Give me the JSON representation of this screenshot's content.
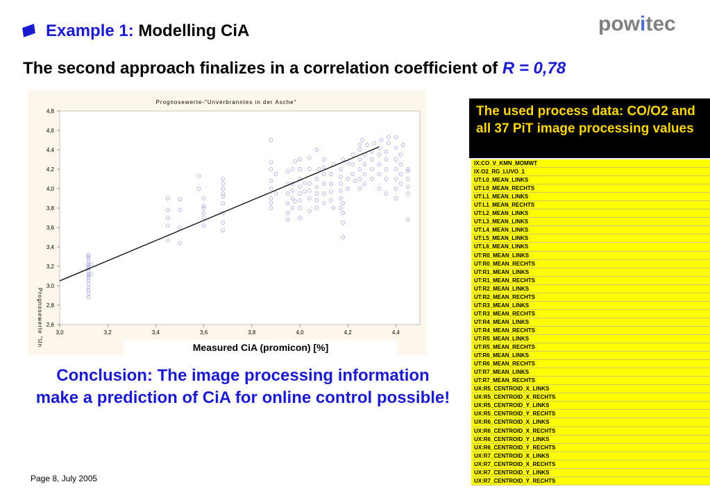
{
  "header": {
    "title_lead": "Example 1:",
    "title_rest": "Modelling CiA",
    "logo_prefix": "pow",
    "logo_accent": "i",
    "logo_suffix": "tec",
    "subtitle_text": "The second approach finalizes in a correlation coefficient of",
    "subtitle_r": "R = 0,78"
  },
  "chart_data": {
    "type": "scatter",
    "title": "Prognosewerte-\"Unverbranntes in der Asche\"",
    "xlabel": "Measured CiA (promicon) [%]",
    "ylabel": "Prognosewerte \"Un",
    "xlim": [
      3.0,
      4.5
    ],
    "ylim": [
      2.6,
      4.8
    ],
    "x_ticks": [
      "3,0",
      "3,2",
      "3,4",
      "3,6",
      "3,8",
      "4,0",
      "4,2",
      "4,4"
    ],
    "y_ticks": [
      "2,6",
      "2,8",
      "3,0",
      "3,2",
      "3,4",
      "3,6",
      "3,8",
      "4,0",
      "4,2",
      "4,4",
      "4,6",
      "4,8"
    ],
    "fit_line": {
      "x": [
        3.0,
        4.33
      ],
      "y": [
        3.05,
        4.43
      ]
    },
    "points": [
      [
        3.12,
        2.88
      ],
      [
        3.12,
        2.92
      ],
      [
        3.12,
        2.95
      ],
      [
        3.12,
        2.98
      ],
      [
        3.12,
        3.02
      ],
      [
        3.12,
        3.05
      ],
      [
        3.12,
        3.08
      ],
      [
        3.12,
        3.1
      ],
      [
        3.12,
        3.12
      ],
      [
        3.12,
        3.15
      ],
      [
        3.12,
        3.18
      ],
      [
        3.12,
        3.2
      ],
      [
        3.12,
        3.22
      ],
      [
        3.12,
        3.25
      ],
      [
        3.12,
        3.28
      ],
      [
        3.12,
        3.3
      ],
      [
        3.12,
        3.32
      ],
      [
        3.13,
        3.12
      ],
      [
        3.13,
        3.22
      ],
      [
        3.45,
        3.47
      ],
      [
        3.45,
        3.62
      ],
      [
        3.45,
        3.7
      ],
      [
        3.45,
        3.78
      ],
      [
        3.45,
        3.9
      ],
      [
        3.5,
        3.44
      ],
      [
        3.5,
        3.6
      ],
      [
        3.5,
        3.78
      ],
      [
        3.5,
        3.89
      ],
      [
        3.58,
        4.0
      ],
      [
        3.58,
        4.13
      ],
      [
        3.6,
        3.75
      ],
      [
        3.6,
        3.8
      ],
      [
        3.6,
        3.82
      ],
      [
        3.6,
        3.9
      ],
      [
        3.6,
        3.62
      ],
      [
        3.6,
        3.7
      ],
      [
        3.68,
        3.57
      ],
      [
        3.68,
        3.65
      ],
      [
        3.68,
        3.75
      ],
      [
        3.68,
        3.85
      ],
      [
        3.68,
        3.95
      ],
      [
        3.68,
        4.0
      ],
      [
        3.68,
        4.05
      ],
      [
        3.68,
        4.1
      ],
      [
        3.68,
        3.92
      ],
      [
        3.88,
        3.8
      ],
      [
        3.88,
        3.85
      ],
      [
        3.88,
        3.9
      ],
      [
        3.88,
        4.0
      ],
      [
        3.88,
        4.08
      ],
      [
        3.88,
        4.2
      ],
      [
        3.88,
        4.27
      ],
      [
        3.88,
        4.5
      ],
      [
        3.9,
        4.15
      ],
      [
        3.9,
        3.95
      ],
      [
        3.95,
        3.68
      ],
      [
        3.95,
        3.75
      ],
      [
        3.95,
        3.85
      ],
      [
        3.95,
        3.95
      ],
      [
        3.95,
        4.05
      ],
      [
        3.95,
        4.18
      ],
      [
        3.97,
        3.9
      ],
      [
        3.97,
        3.98
      ],
      [
        3.97,
        4.05
      ],
      [
        3.97,
        4.2
      ],
      [
        3.97,
        3.8
      ],
      [
        3.98,
        3.87
      ],
      [
        3.98,
        4.28
      ],
      [
        4.0,
        3.7
      ],
      [
        4.0,
        3.8
      ],
      [
        4.0,
        3.88
      ],
      [
        4.0,
        3.95
      ],
      [
        4.0,
        4.02
      ],
      [
        4.0,
        4.1
      ],
      [
        4.0,
        4.2
      ],
      [
        4.0,
        4.3
      ],
      [
        4.02,
        3.97
      ],
      [
        4.02,
        4.06
      ],
      [
        4.04,
        3.9
      ],
      [
        4.04,
        3.98
      ],
      [
        4.04,
        4.05
      ],
      [
        4.04,
        4.2
      ],
      [
        4.04,
        4.32
      ],
      [
        4.04,
        3.77
      ],
      [
        4.07,
        3.8
      ],
      [
        4.07,
        3.88
      ],
      [
        4.07,
        3.95
      ],
      [
        4.07,
        4.02
      ],
      [
        4.07,
        4.1
      ],
      [
        4.07,
        4.4
      ],
      [
        4.08,
        4.2
      ],
      [
        4.1,
        3.85
      ],
      [
        4.1,
        3.95
      ],
      [
        4.1,
        4.05
      ],
      [
        4.1,
        4.15
      ],
      [
        4.1,
        4.22
      ],
      [
        4.1,
        4.3
      ],
      [
        4.13,
        3.88
      ],
      [
        4.13,
        3.97
      ],
      [
        4.13,
        4.05
      ],
      [
        4.13,
        4.15
      ],
      [
        4.14,
        4.25
      ],
      [
        4.14,
        3.8
      ],
      [
        4.17,
        3.8
      ],
      [
        4.17,
        3.9
      ],
      [
        4.17,
        3.98
      ],
      [
        4.17,
        4.05
      ],
      [
        4.17,
        4.12
      ],
      [
        4.17,
        4.2
      ],
      [
        4.18,
        4.3
      ],
      [
        4.18,
        3.5
      ],
      [
        4.18,
        3.65
      ],
      [
        4.18,
        3.75
      ],
      [
        4.18,
        3.85
      ],
      [
        4.2,
        4.0
      ],
      [
        4.2,
        4.1
      ],
      [
        4.2,
        4.27
      ],
      [
        4.22,
        4.15
      ],
      [
        4.22,
        4.25
      ],
      [
        4.22,
        4.35
      ],
      [
        4.23,
        4.08
      ],
      [
        4.25,
        4.0
      ],
      [
        4.25,
        4.1
      ],
      [
        4.25,
        4.2
      ],
      [
        4.25,
        4.3
      ],
      [
        4.25,
        4.4
      ],
      [
        4.25,
        4.45
      ],
      [
        4.26,
        4.5
      ],
      [
        4.27,
        4.05
      ],
      [
        4.27,
        4.15
      ],
      [
        4.27,
        4.25
      ],
      [
        4.27,
        4.35
      ],
      [
        4.28,
        4.45
      ],
      [
        4.3,
        4.1
      ],
      [
        4.3,
        4.2
      ],
      [
        4.3,
        4.3
      ],
      [
        4.3,
        4.38
      ],
      [
        4.31,
        4.47
      ],
      [
        4.33,
        4.0
      ],
      [
        4.33,
        4.15
      ],
      [
        4.33,
        4.25
      ],
      [
        4.33,
        4.35
      ],
      [
        4.33,
        4.42
      ],
      [
        4.34,
        4.5
      ],
      [
        4.36,
        3.95
      ],
      [
        4.36,
        4.1
      ],
      [
        4.36,
        4.2
      ],
      [
        4.36,
        4.3
      ],
      [
        4.36,
        4.38
      ],
      [
        4.37,
        4.47
      ],
      [
        4.37,
        4.53
      ],
      [
        4.4,
        3.9
      ],
      [
        4.4,
        4.0
      ],
      [
        4.4,
        4.1
      ],
      [
        4.4,
        4.2
      ],
      [
        4.4,
        4.3
      ],
      [
        4.4,
        4.42
      ],
      [
        4.4,
        4.53
      ],
      [
        4.42,
        4.05
      ],
      [
        4.42,
        4.15
      ],
      [
        4.42,
        4.25
      ],
      [
        4.42,
        4.35
      ],
      [
        4.43,
        4.45
      ],
      [
        4.45,
        3.68
      ],
      [
        4.45,
        3.95
      ],
      [
        4.45,
        4.02
      ],
      [
        4.45,
        4.1
      ],
      [
        4.45,
        4.18
      ],
      [
        4.45,
        4.2
      ]
    ]
  },
  "panel": {
    "heading": "The used process data: CO/O2 and all 37 PiT image processing values"
  },
  "variables": [
    "IX:CO_V_KMN_MOMWT",
    "IX:O2_RG_LUVO_1",
    "UT:L0_MEAN_LINKS",
    "UT:L0_MEAN_RECHTS",
    "UT:L1_MEAN_LINKS",
    "UT:L1_MEAN_RECHTS",
    "UT:L2_MEAN_LINKS",
    "UT:L3_MEAN_LINKS",
    "UT:L4_MEAN_LINKS",
    "UT:L5_MEAN_LINKS",
    "UT:L6_MEAN_LINKS",
    "UT:R0_MEAN_LINKS",
    "UT:R0_MEAN_RECHTS",
    "UT:R1_MEAN_LINKS",
    "UT:R1_MEAN_RECHTS",
    "UT:R2_MEAN_LINKS",
    "UT:R2_MEAN_RECHTS",
    "UT:R3_MEAN_LINKS",
    "UT:R3_MEAN_RECHTS",
    "UT:R4_MEAN_LINKS",
    "UT:R4_MEAN_RECHTS",
    "UT:R5_MEAN_LINKS",
    "UT:R5_MEAN_RECHTS",
    "UT:R6_MEAN_LINKS",
    "UT:R6_MEAN_RECHTS",
    "UT:R7_MEAN_LINKS",
    "UT:R7_MEAN_RECHTS",
    "UX:R5_CENTROID_X_LINKS",
    "UX:R5_CENTROID_X_RECHTS",
    "UX:R5_CENTROID_Y_LINKS",
    "UX:R5_CENTROID_Y_RECHTS",
    "UX:R6_CENTROID_X_LINKS",
    "UX:R6_CENTROID_X_RECHTS",
    "UX:R6_CENTROID_Y_LINKS",
    "UX:R6_CENTROID_Y_RECHTS",
    "UX:R7_CENTROID_X_LINKS",
    "UX:R7_CENTROID_X_RECHTS",
    "UX:R7_CENTROID_Y_LINKS",
    "UX:R7_CENTROID_Y_RECHTS"
  ],
  "conclusion": "Conclusion: The image processing information make a prediction of CiA for online control possible!",
  "footer": "Page 8, July 2005",
  "colors": {
    "accent_blue": "#1a1ad1",
    "panel_bg": "#000000",
    "panel_text": "#ffd700",
    "list_bg": "#ffff00",
    "marker": "#9a9ae8"
  }
}
